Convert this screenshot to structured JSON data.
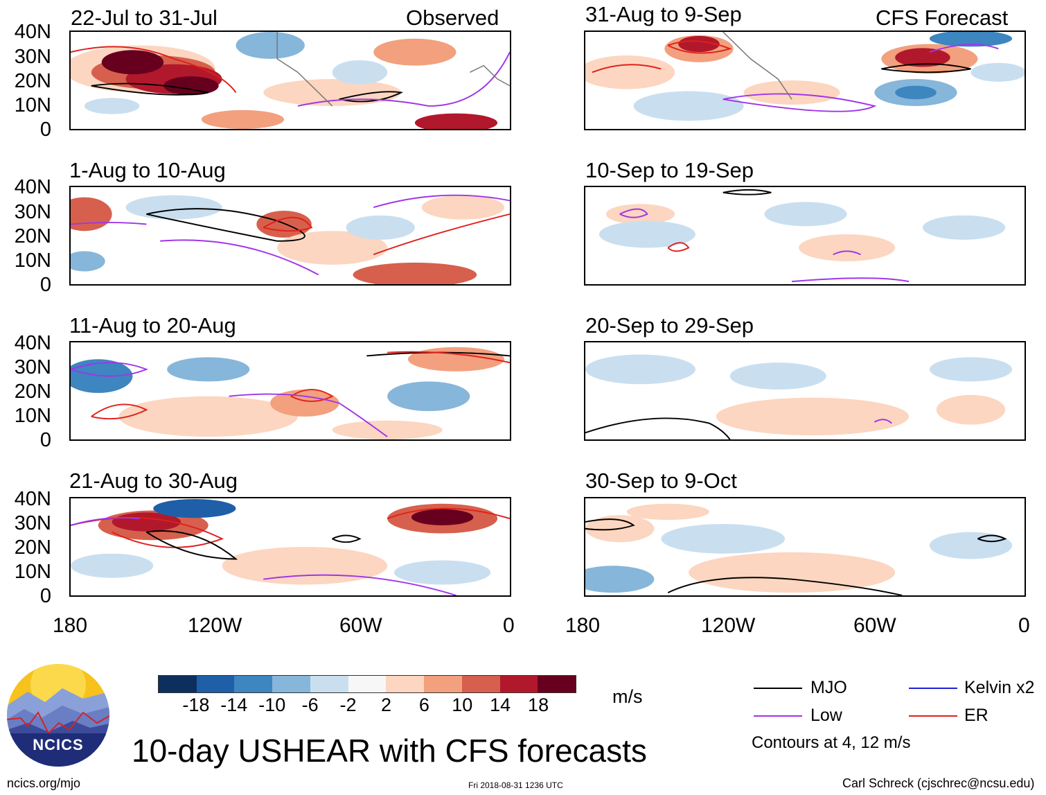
{
  "panels": [
    {
      "title": "22-Jul to 31-Jul",
      "right_label": "Observed"
    },
    {
      "title": "31-Aug to 9-Sep",
      "right_label": "CFS Forecast"
    },
    {
      "title": "1-Aug to 10-Aug",
      "right_label": ""
    },
    {
      "title": "10-Sep to 19-Sep",
      "right_label": ""
    },
    {
      "title": "11-Aug to 20-Aug",
      "right_label": ""
    },
    {
      "title": "20-Sep to 29-Sep",
      "right_label": ""
    },
    {
      "title": "21-Aug to 30-Aug",
      "right_label": ""
    },
    {
      "title": "30-Sep to 9-Oct",
      "right_label": ""
    }
  ],
  "lat_labels": [
    "40N",
    "30N",
    "20N",
    "10N",
    "0"
  ],
  "lon_labels": [
    "180",
    "120W",
    "60W",
    "0"
  ],
  "colorbar": {
    "ticks": [
      "-18",
      "-14",
      "-10",
      "-6",
      "-2",
      "2",
      "6",
      "10",
      "14",
      "18"
    ],
    "colors": [
      "#0d2f5e",
      "#1f5fa8",
      "#3d86c0",
      "#86b6da",
      "#c9dff0",
      "#f7f7f7",
      "#fcd6c0",
      "#f2a07e",
      "#d6604d",
      "#b2182b",
      "#67001f"
    ],
    "units": "m/s"
  },
  "title": "10-day USHEAR with CFS forecasts",
  "legend": {
    "items": [
      {
        "label": "MJO",
        "color": "#000000"
      },
      {
        "label": "Kelvin x2",
        "color": "#1f1fd6"
      },
      {
        "label": "Low",
        "color": "#a035e8"
      },
      {
        "label": "ER",
        "color": "#e0201b"
      }
    ],
    "contours_note": "Contours at 4, 12 m/s"
  },
  "logo_text": "NCICS",
  "footer": {
    "left": "ncics.org/mjo",
    "center": "Fri 2018-08-31 1236 UTC",
    "right": "Carl Schreck (cjschrec@ncsu.edu)"
  }
}
